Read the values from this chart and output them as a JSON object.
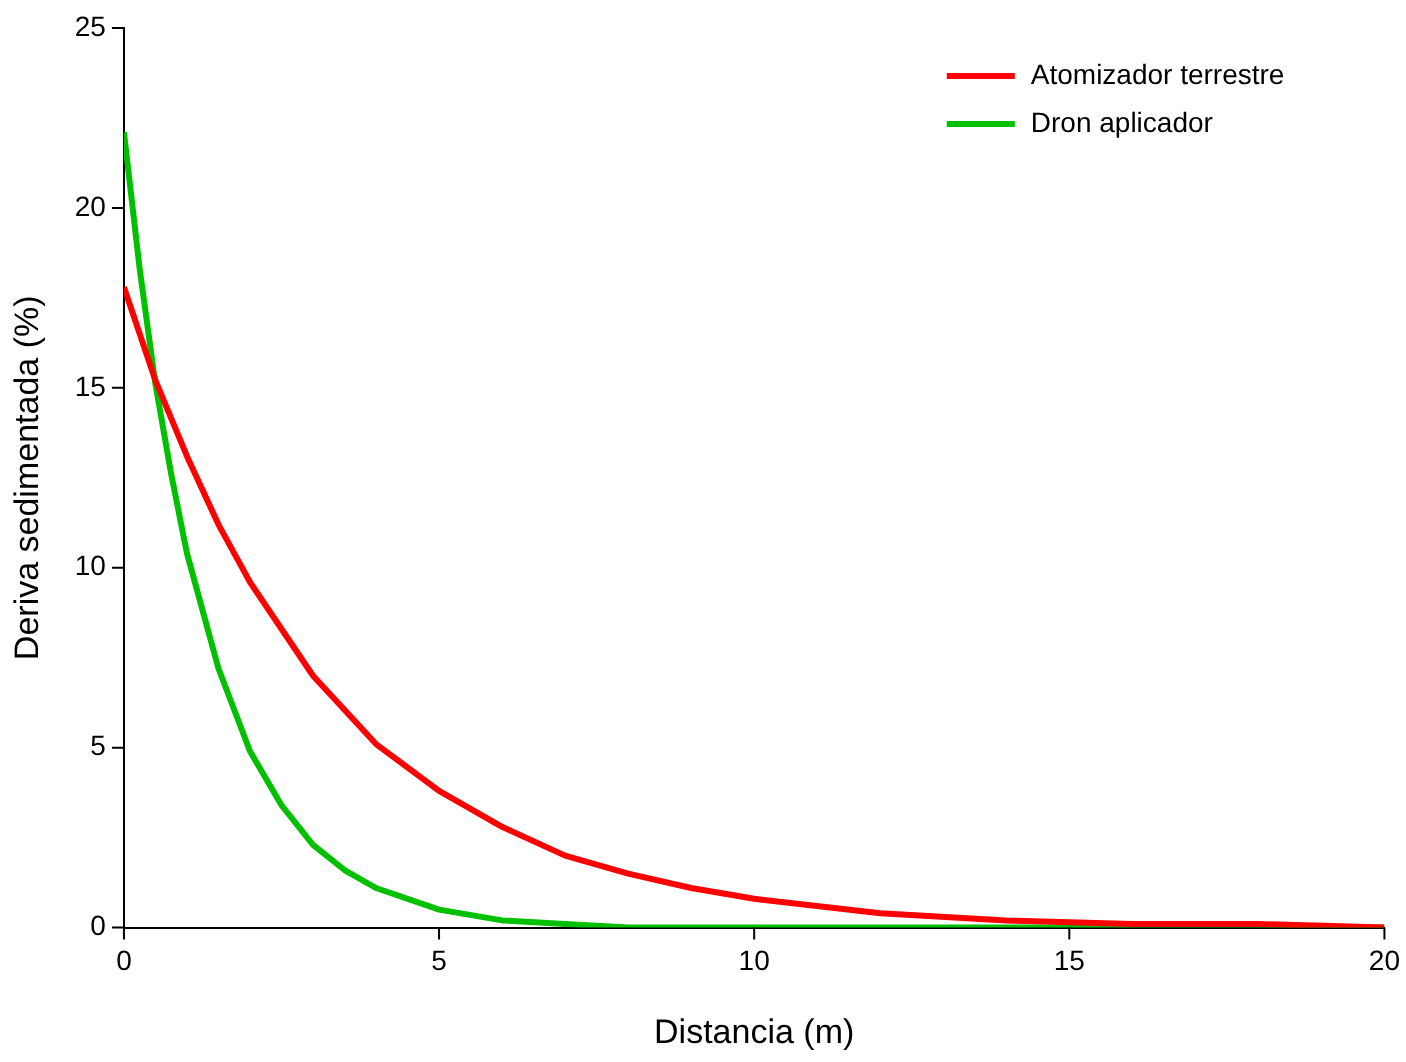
{
  "chart_data": {
    "type": "line",
    "xlabel": "Distancia (m)",
    "ylabel": "Deriva sedimentada (%)",
    "xlim": [
      0,
      20
    ],
    "xticks": [
      0,
      5,
      10,
      15,
      20
    ],
    "ylim": [
      0,
      25
    ],
    "yticks": [
      0,
      5,
      10,
      15,
      20,
      25
    ],
    "grid": false,
    "legend": "top right",
    "marker": "none",
    "line_style": "solid",
    "series": [
      {
        "name": "Atomizador terrestre",
        "color": "#ff0000",
        "x": [
          0,
          0.5,
          1,
          1.5,
          2,
          3,
          4,
          5,
          6,
          7,
          8,
          9,
          10,
          12,
          14,
          16,
          18,
          20
        ],
        "values": [
          17.8,
          15.2,
          13.1,
          11.2,
          9.6,
          7.0,
          5.1,
          3.8,
          2.8,
          2.0,
          1.5,
          1.1,
          0.8,
          0.4,
          0.2,
          0.1,
          0.1,
          0.0
        ]
      },
      {
        "name": "Dron aplicador",
        "color": "#00c000",
        "x": [
          0,
          0.25,
          0.5,
          0.75,
          1,
          1.5,
          2,
          2.5,
          3,
          3.5,
          4,
          5,
          6,
          7,
          8,
          20
        ],
        "values": [
          22.1,
          18.3,
          15.1,
          12.6,
          10.4,
          7.2,
          4.9,
          3.4,
          2.3,
          1.6,
          1.1,
          0.5,
          0.2,
          0.1,
          0.0,
          0.0
        ]
      }
    ]
  }
}
